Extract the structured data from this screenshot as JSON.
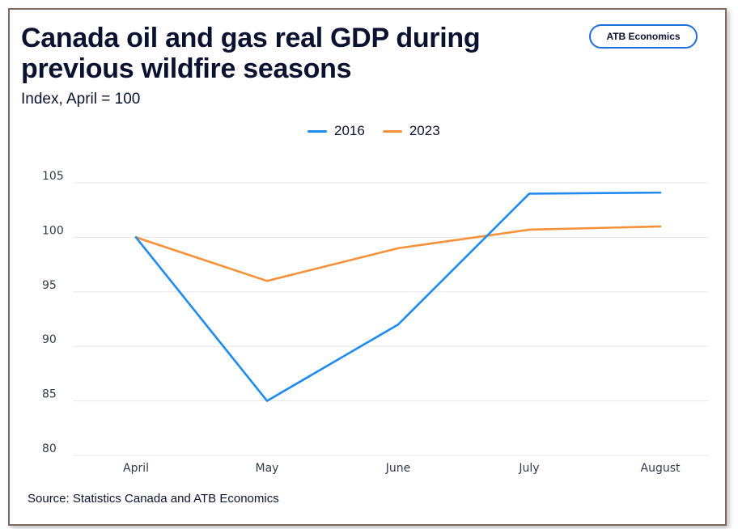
{
  "header": {
    "title": "Canada oil and gas real GDP during previous wildfire seasons",
    "subtitle": "Index, April = 100",
    "badge": "ATB Economics"
  },
  "footer": {
    "source": "Source: Statistics Canada and ATB Economics"
  },
  "colors": {
    "series_2016": "#1f8af0",
    "series_2023": "#f5913a",
    "grid": "#e6e6e6",
    "text": "#0b1230"
  },
  "chart_data": {
    "type": "line",
    "title": "Canada oil and gas real GDP during previous wildfire seasons",
    "subtitle": "Index, April = 100",
    "xlabel": "",
    "ylabel": "",
    "categories": [
      "April",
      "May",
      "June",
      "July",
      "August"
    ],
    "series": [
      {
        "name": "2016",
        "color": "#1f8af0",
        "values": [
          100,
          85,
          92,
          104,
          104.1
        ]
      },
      {
        "name": "2023",
        "color": "#f5913a",
        "values": [
          100,
          96,
          99,
          100.7,
          101
        ]
      }
    ],
    "ylim": [
      80,
      105
    ],
    "yticks": [
      80,
      85,
      90,
      95,
      100,
      105
    ],
    "grid": true,
    "legend": "top-center"
  }
}
